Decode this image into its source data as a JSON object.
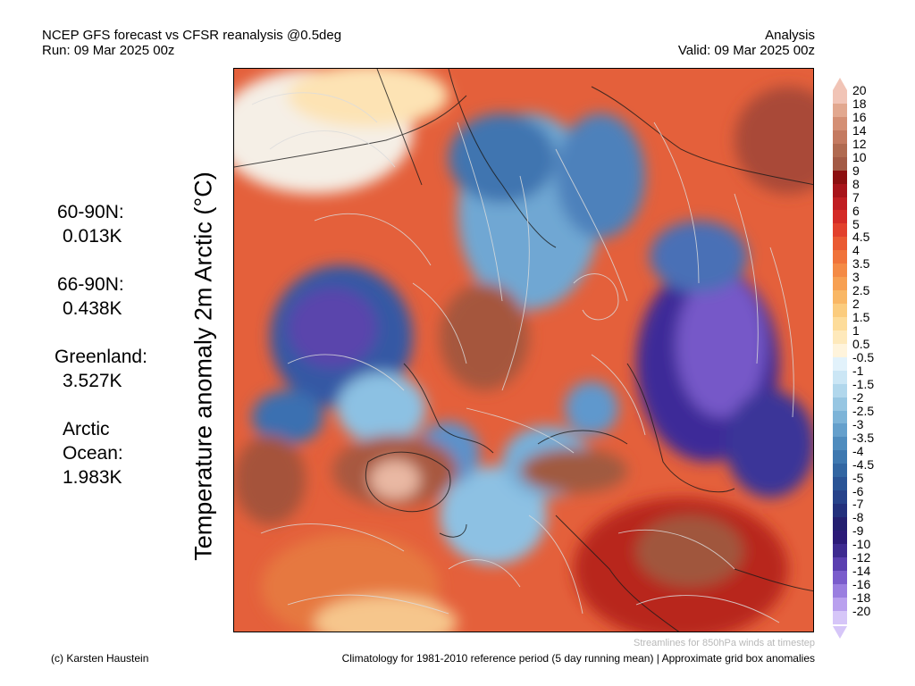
{
  "header": {
    "title": "NCEP GFS forecast vs CFSR reanalysis @0.5deg",
    "run": "Run: 09 Mar 2025 00z",
    "mode": "Analysis",
    "valid": "Valid: 09 Mar 2025 00z"
  },
  "y_label": "Temperature anomaly 2m Arctic (°C)",
  "stats": [
    {
      "label": "60-90N:",
      "value": "0.013K"
    },
    {
      "label": "66-90N:",
      "value": "0.438K"
    },
    {
      "label": "Greenland:",
      "value": "3.527K"
    },
    {
      "label": "Arctic Ocean:",
      "label_lines": [
        "Arctic",
        "Ocean:"
      ],
      "value": "1.983K"
    }
  ],
  "colorbar": {
    "labels": [
      "20",
      "18",
      "16",
      "14",
      "12",
      "10",
      "9",
      "8",
      "7",
      "6",
      "5",
      "4.5",
      "4",
      "3.5",
      "3",
      "2.5",
      "2",
      "1.5",
      "1",
      "0.5",
      "-0.5",
      "-1",
      "-1.5",
      "-2",
      "-2.5",
      "-3",
      "-3.5",
      "-4",
      "-4.5",
      "-5",
      "-6",
      "-7",
      "-8",
      "-9",
      "-10",
      "-12",
      "-14",
      "-16",
      "-18",
      "-20"
    ],
    "colors": [
      "#f1c4b6",
      "#e2a88f",
      "#d48f74",
      "#c47a60",
      "#b06a50",
      "#a35a45",
      "#8c0f10",
      "#a8141a",
      "#c01e22",
      "#d42a26",
      "#e2402c",
      "#ea5a32",
      "#f0733a",
      "#f48a45",
      "#f7a052",
      "#f9b765",
      "#fbcc7e",
      "#fddc9a",
      "#fee9bb",
      "#fff4dc",
      "#e2f2fb",
      "#cbe6f5",
      "#b1d7ec",
      "#97c6e2",
      "#7db4d8",
      "#65a0cc",
      "#4f8cbe",
      "#3e78b0",
      "#3266a2",
      "#2a5496",
      "#26428a",
      "#22307c",
      "#231f70",
      "#2b1a78",
      "#3d2a90",
      "#5a3fb0",
      "#7a5ccc",
      "#9a7ee0",
      "#b9a0ee",
      "#d6c6f8"
    ]
  },
  "footer": {
    "credit": "(c) Karsten Haustein",
    "streamlines": "Streamlines for 850hPa winds at timestep",
    "climatology": "Climatology for 1981-2010 reference period (5 day running mean) | Approximate grid box anomalies"
  }
}
